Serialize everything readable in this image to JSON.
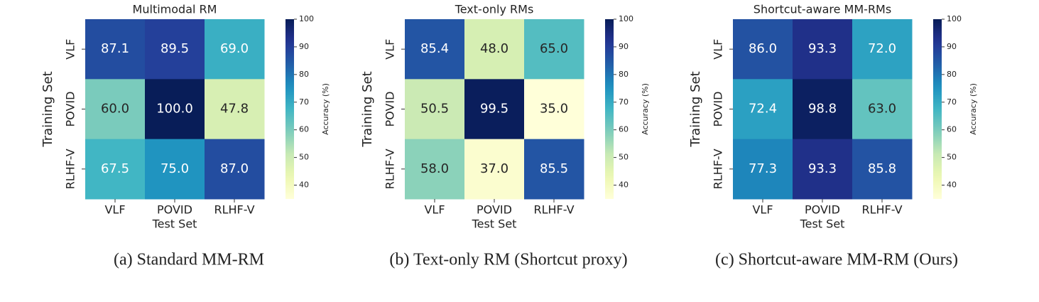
{
  "chart_data": [
    {
      "type": "heatmap",
      "title": "Multimodal RM",
      "caption": "(a) Standard MM-RM",
      "xlabel": "Test Set",
      "ylabel": "Training Set",
      "x": [
        "VLF",
        "POVID",
        "RLHF-V"
      ],
      "y": [
        "VLF",
        "POVID",
        "RLHF-V"
      ],
      "values": [
        [
          87.1,
          89.5,
          69.0
        ],
        [
          60.0,
          100.0,
          47.8
        ],
        [
          67.5,
          75.0,
          87.0
        ]
      ],
      "value_labels": [
        [
          "87.1",
          "89.5",
          "69.0"
        ],
        [
          "60.0",
          "100.0",
          "47.8"
        ],
        [
          "67.5",
          "75.0",
          "87.0"
        ]
      ],
      "colormap": "YlGnBu",
      "colorbar_label": "Accuracy (%)",
      "clim": [
        35,
        100
      ],
      "cticks": [
        40,
        50,
        60,
        70,
        80,
        90,
        100
      ]
    },
    {
      "type": "heatmap",
      "title": "Text-only RMs",
      "caption": "(b) Text-only RM (Shortcut proxy)",
      "xlabel": "Test Set",
      "ylabel": "Training Set",
      "x": [
        "VLF",
        "POVID",
        "RLHF-V"
      ],
      "y": [
        "VLF",
        "POVID",
        "RLHF-V"
      ],
      "values": [
        [
          85.4,
          48.0,
          65.0
        ],
        [
          50.5,
          99.5,
          35.0
        ],
        [
          58.0,
          37.0,
          85.5
        ]
      ],
      "value_labels": [
        [
          "85.4",
          "48.0",
          "65.0"
        ],
        [
          "50.5",
          "99.5",
          "35.0"
        ],
        [
          "58.0",
          "37.0",
          "85.5"
        ]
      ],
      "colormap": "YlGnBu",
      "colorbar_label": "Accuracy (%)",
      "clim": [
        35,
        100
      ],
      "cticks": [
        40,
        50,
        60,
        70,
        80,
        90,
        100
      ]
    },
    {
      "type": "heatmap",
      "title": "Shortcut-aware MM-RMs",
      "caption": "(c) Shortcut-aware MM-RM (Ours)",
      "xlabel": "Test Set",
      "ylabel": "Training Set",
      "x": [
        "VLF",
        "POVID",
        "RLHF-V"
      ],
      "y": [
        "VLF",
        "POVID",
        "RLHF-V"
      ],
      "values": [
        [
          86.0,
          93.3,
          72.0
        ],
        [
          72.4,
          98.8,
          63.0
        ],
        [
          77.3,
          93.3,
          85.8
        ]
      ],
      "value_labels": [
        [
          "86.0",
          "93.3",
          "72.0"
        ],
        [
          "72.4",
          "98.8",
          "63.0"
        ],
        [
          "77.3",
          "93.3",
          "85.8"
        ]
      ],
      "colormap": "YlGnBu",
      "colorbar_label": "Accuracy (%)",
      "clim": [
        35,
        100
      ],
      "cticks": [
        40,
        50,
        60,
        70,
        80,
        90,
        100
      ]
    }
  ]
}
